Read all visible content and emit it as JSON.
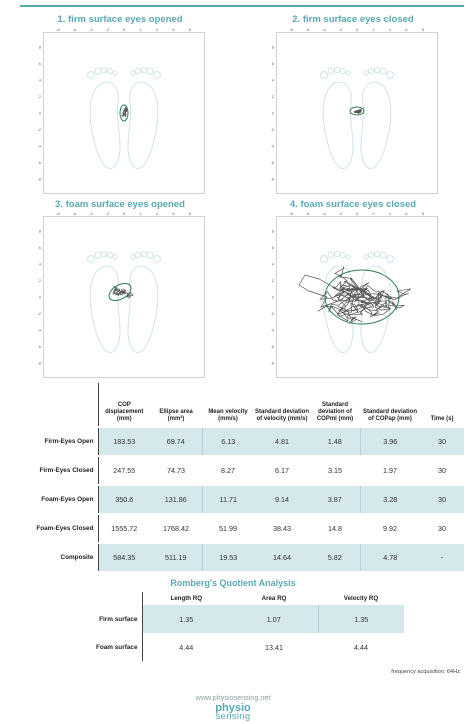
{
  "plots": [
    {
      "title": "1. firm surface eyes opened"
    },
    {
      "title": "2. firm surface eyes closed"
    },
    {
      "title": "3. foam surface eyes opened"
    },
    {
      "title": "4. foam surface eyes closed"
    }
  ],
  "axis_ticks": {
    "x": [
      "-8",
      "-6",
      "-4",
      "-2",
      "0",
      "2",
      "4",
      "6",
      "8"
    ],
    "y": [
      "8",
      "6",
      "4",
      "2",
      "0",
      "-2",
      "-4",
      "-6",
      "-8"
    ]
  },
  "results_table": {
    "headers": [
      "COP displacement (mm)",
      "Ellipse area (mm²)",
      "Mean velocity (mm/s)",
      "Standard deviation of velocity (mm/s)",
      "Standard deviation of COPml (mm)",
      "Standard deviation of COPap (mm)",
      "Time (s)"
    ],
    "rows": [
      {
        "label": "Firm-Eyes Open",
        "values": [
          "183.53",
          "69.74",
          "6.13",
          "4.81",
          "1.48",
          "3.96",
          "30"
        ]
      },
      {
        "label": "Firm-Eyes Closed",
        "values": [
          "247.55",
          "74.73",
          "8.27",
          "6.17",
          "3.15",
          "1.97",
          "30"
        ]
      },
      {
        "label": "Foam-Eyes Open",
        "values": [
          "350.6",
          "131.86",
          "11.71",
          "9.14",
          "3.87",
          "3.28",
          "30"
        ]
      },
      {
        "label": "Foam-Eyes Closed",
        "values": [
          "1555.72",
          "1768.42",
          "51.99",
          "38.43",
          "14.8",
          "9.92",
          "30"
        ]
      },
      {
        "label": "Composite",
        "values": [
          "584.35",
          "511.19",
          "19.53",
          "14.64",
          "5.82",
          "4.78",
          "-"
        ]
      }
    ]
  },
  "romberg": {
    "title": "Romberg's Quotient Analysis",
    "headers": [
      "Length RQ",
      "Area RQ",
      "Velocity RQ"
    ],
    "rows": [
      {
        "label": "Firm surface",
        "values": [
          "1.35",
          "1.07",
          "1.35"
        ]
      },
      {
        "label": "Foam surface",
        "values": [
          "4.44",
          "13.41",
          "4.44"
        ]
      }
    ]
  },
  "frequency_note": "frequency acquisition: 64Hz",
  "website": "www.physiosensing.net",
  "logo": {
    "line1": "physio",
    "line2": "sensing"
  },
  "colors": {
    "accent": "#5aa9b2",
    "row_highlight": "#d5e8ec",
    "trace": "#555555",
    "ellipse": "#2e7d4f"
  }
}
